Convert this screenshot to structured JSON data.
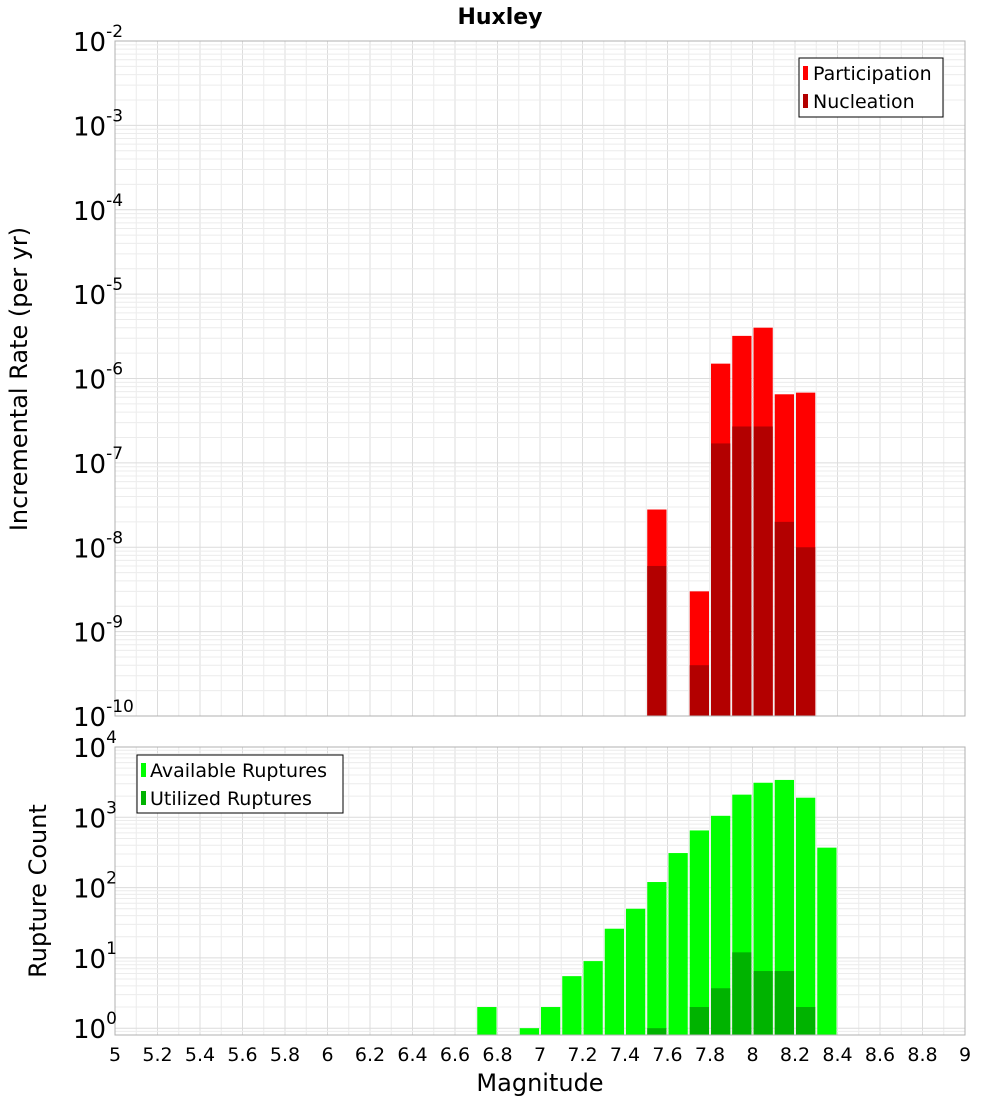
{
  "chart_data": [
    {
      "type": "bar",
      "title": "Huxley",
      "ylabel": "Incremental Rate (per yr)",
      "xlabel": "",
      "yscale": "log",
      "ylim": [
        1e-10,
        0.01
      ],
      "xlim": [
        5,
        9
      ],
      "y_tick_exponents": [
        -2,
        -3,
        -4,
        -5,
        -6,
        -7,
        -8,
        -9,
        -10
      ],
      "legend_position": "top-right",
      "series": [
        {
          "name": "Participation",
          "color": "#ff0000",
          "x": [
            7.55,
            7.75,
            7.85,
            7.95,
            8.05,
            8.15,
            8.25
          ],
          "values": [
            2.8e-08,
            3e-09,
            1.5e-06,
            3.2e-06,
            4e-06,
            6.5e-07,
            6.8e-07
          ]
        },
        {
          "name": "Nucleation",
          "color": "#b30000",
          "x": [
            7.55,
            7.75,
            7.85,
            7.95,
            8.05,
            8.15,
            8.25
          ],
          "values": [
            6e-09,
            4e-10,
            1.7e-07,
            2.7e-07,
            2.7e-07,
            2e-08,
            1e-08
          ]
        }
      ]
    },
    {
      "type": "bar",
      "title": "",
      "ylabel": "Rupture Count",
      "xlabel": "Magnitude",
      "yscale": "log",
      "ylim": [
        0.8,
        10000
      ],
      "xlim": [
        5,
        9
      ],
      "y_tick_exponents": [
        4,
        3,
        2,
        1,
        0
      ],
      "x_ticks": [
        "5",
        "5.2",
        "5.4",
        "5.6",
        "5.8",
        "6",
        "6.2",
        "6.4",
        "6.6",
        "6.8",
        "7",
        "7.2",
        "7.4",
        "7.6",
        "7.8",
        "8",
        "8.2",
        "8.4",
        "8.6",
        "8.8",
        "9"
      ],
      "legend_position": "top-left",
      "series": [
        {
          "name": "Available Ruptures",
          "color": "#00ff00",
          "x": [
            6.75,
            6.95,
            7.05,
            7.15,
            7.25,
            7.35,
            7.45,
            7.55,
            7.65,
            7.75,
            7.85,
            7.95,
            8.05,
            8.15,
            8.25,
            8.35
          ],
          "values": [
            2,
            1,
            2,
            5.5,
            9,
            26,
            50,
            120,
            310,
            650,
            1050,
            2100,
            3100,
            3400,
            1900,
            370
          ]
        },
        {
          "name": "Utilized Ruptures",
          "color": "#00b300",
          "x": [
            7.55,
            7.75,
            7.85,
            7.95,
            8.05,
            8.15,
            8.25
          ],
          "values": [
            1,
            2,
            3.7,
            12,
            6.5,
            6.5,
            2
          ]
        }
      ]
    }
  ]
}
